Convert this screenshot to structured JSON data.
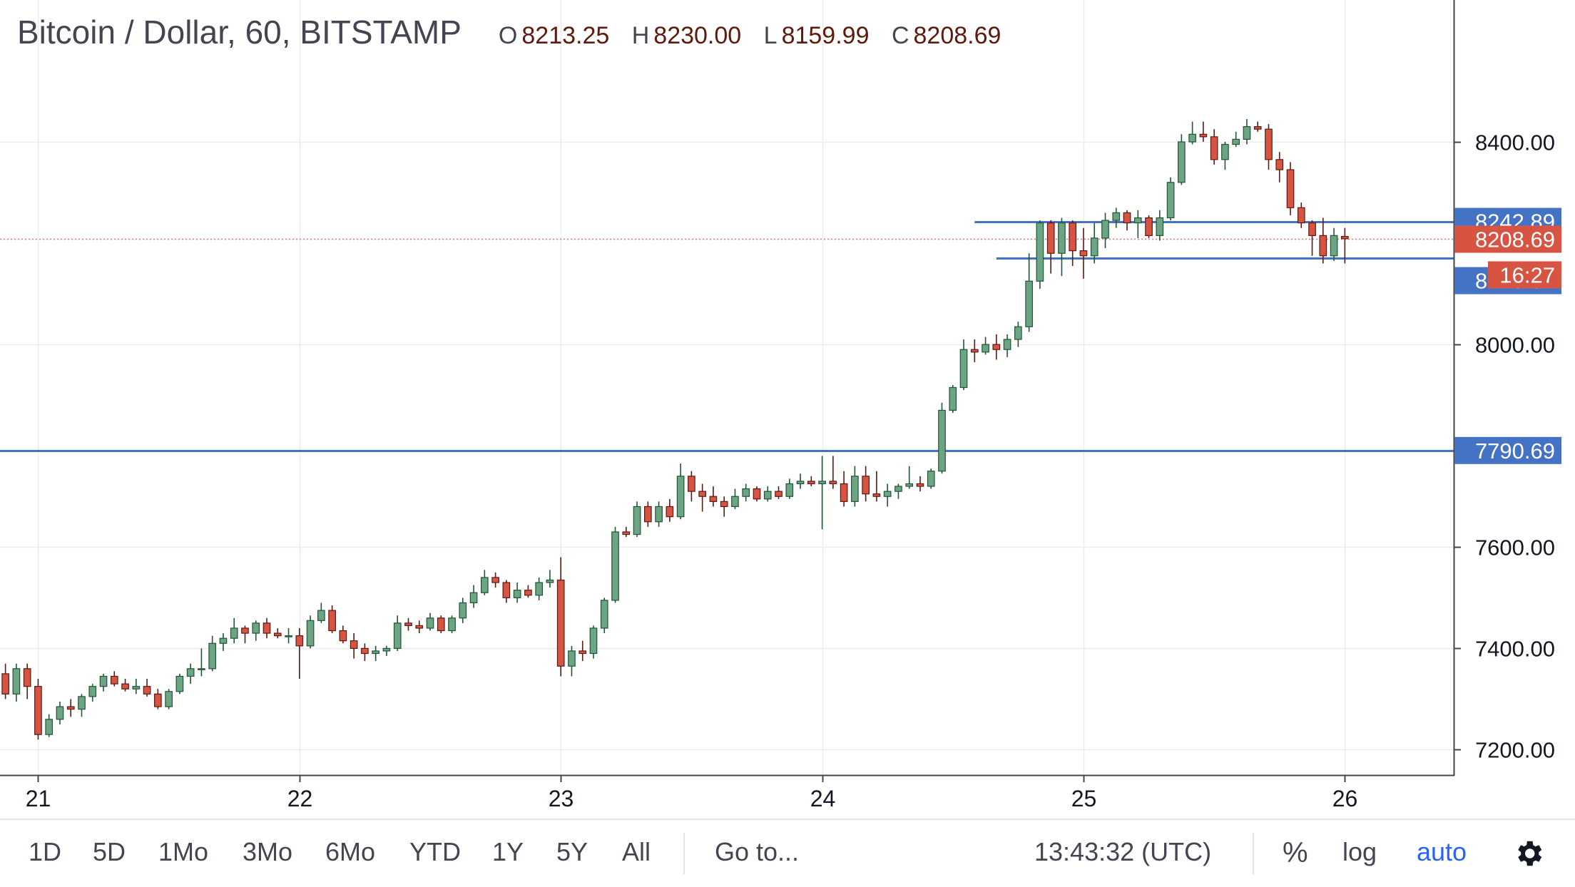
{
  "legend": {
    "symbol": "Bitcoin / Dollar, 60, BITSTAMP",
    "o_label": "O",
    "o_value": "8213.25",
    "h_label": "H",
    "h_value": "8230.00",
    "l_label": "L",
    "l_value": "8159.99",
    "c_label": "C",
    "c_value": "8208.69"
  },
  "chart_data": {
    "type": "candlestick",
    "x_ticks": [
      {
        "label": "21",
        "t": 0
      },
      {
        "label": "22",
        "t": 24
      },
      {
        "label": "23",
        "t": 48
      },
      {
        "label": "24",
        "t": 72
      },
      {
        "label": "25",
        "t": 96
      },
      {
        "label": "26",
        "t": 120
      }
    ],
    "y_ticks": [
      "7200.00",
      "7400.00",
      "7600.00",
      "8000.00",
      "8400.00"
    ],
    "ylim": [
      7150,
      8680
    ],
    "xlim": [
      -3.5,
      130
    ],
    "horizontal_lines": [
      {
        "value": 8242.89,
        "label": "8242.89",
        "from_t": 86
      },
      {
        "value": 8170.37,
        "from_t": 88
      },
      {
        "value": 7790.69,
        "label": "7790.69",
        "from_t": -4
      }
    ],
    "price_line": {
      "value": 8208.69,
      "label": "8208.69",
      "countdown": "16:27"
    },
    "extra_axis_label": {
      "value": 8170.37,
      "label": "8170.37",
      "y_display": 8126
    },
    "colors": {
      "up": "#6ba583",
      "down": "#d75442",
      "up_border": "#225437",
      "down_border": "#5b1a13",
      "level": "#4472c4",
      "price": "#d75442"
    },
    "candles": [
      [
        -3,
        7350,
        7370,
        7300,
        7310
      ],
      [
        -2,
        7310,
        7370,
        7295,
        7360
      ],
      [
        -1,
        7360,
        7370,
        7300,
        7325
      ],
      [
        0,
        7325,
        7340,
        7220,
        7230
      ],
      [
        1,
        7230,
        7270,
        7225,
        7260
      ],
      [
        2,
        7260,
        7295,
        7250,
        7285
      ],
      [
        3,
        7285,
        7300,
        7265,
        7280
      ],
      [
        4,
        7280,
        7310,
        7265,
        7305
      ],
      [
        5,
        7305,
        7330,
        7295,
        7325
      ],
      [
        6,
        7325,
        7350,
        7315,
        7345
      ],
      [
        7,
        7345,
        7355,
        7325,
        7330
      ],
      [
        8,
        7330,
        7340,
        7315,
        7320
      ],
      [
        9,
        7320,
        7340,
        7310,
        7325
      ],
      [
        10,
        7325,
        7340,
        7305,
        7310
      ],
      [
        11,
        7310,
        7320,
        7280,
        7285
      ],
      [
        12,
        7285,
        7320,
        7280,
        7315
      ],
      [
        13,
        7315,
        7350,
        7310,
        7345
      ],
      [
        14,
        7345,
        7370,
        7330,
        7360
      ],
      [
        15,
        7360,
        7400,
        7345,
        7360
      ],
      [
        16,
        7360,
        7425,
        7355,
        7410
      ],
      [
        17,
        7410,
        7430,
        7395,
        7420
      ],
      [
        18,
        7420,
        7460,
        7410,
        7440
      ],
      [
        19,
        7440,
        7445,
        7410,
        7430
      ],
      [
        20,
        7430,
        7455,
        7415,
        7450
      ],
      [
        21,
        7450,
        7460,
        7420,
        7430
      ],
      [
        22,
        7430,
        7440,
        7420,
        7425
      ],
      [
        23,
        7425,
        7440,
        7410,
        7425
      ],
      [
        24,
        7425,
        7440,
        7340,
        7405
      ],
      [
        25,
        7405,
        7465,
        7400,
        7455
      ],
      [
        26,
        7455,
        7490,
        7450,
        7475
      ],
      [
        27,
        7475,
        7485,
        7430,
        7435
      ],
      [
        28,
        7435,
        7445,
        7410,
        7415
      ],
      [
        29,
        7415,
        7430,
        7380,
        7400
      ],
      [
        30,
        7400,
        7410,
        7375,
        7390
      ],
      [
        31,
        7390,
        7405,
        7375,
        7395
      ],
      [
        32,
        7395,
        7405,
        7385,
        7400
      ],
      [
        33,
        7400,
        7465,
        7395,
        7450
      ],
      [
        34,
        7450,
        7460,
        7435,
        7445
      ],
      [
        35,
        7445,
        7455,
        7430,
        7440
      ],
      [
        36,
        7440,
        7470,
        7435,
        7460
      ],
      [
        37,
        7460,
        7465,
        7430,
        7435
      ],
      [
        38,
        7435,
        7465,
        7430,
        7460
      ],
      [
        39,
        7460,
        7500,
        7450,
        7490
      ],
      [
        40,
        7490,
        7525,
        7480,
        7510
      ],
      [
        41,
        7510,
        7555,
        7505,
        7540
      ],
      [
        42,
        7540,
        7550,
        7520,
        7530
      ],
      [
        43,
        7530,
        7535,
        7490,
        7500
      ],
      [
        44,
        7500,
        7530,
        7490,
        7515
      ],
      [
        45,
        7515,
        7525,
        7500,
        7505
      ],
      [
        46,
        7505,
        7540,
        7495,
        7530
      ],
      [
        47,
        7530,
        7555,
        7520,
        7535
      ],
      [
        48,
        7535,
        7580,
        7345,
        7365
      ],
      [
        49,
        7365,
        7405,
        7345,
        7395
      ],
      [
        50,
        7395,
        7415,
        7375,
        7390
      ],
      [
        51,
        7390,
        7445,
        7380,
        7440
      ],
      [
        52,
        7440,
        7500,
        7430,
        7495
      ],
      [
        53,
        7495,
        7640,
        7490,
        7630
      ],
      [
        54,
        7630,
        7640,
        7620,
        7625
      ],
      [
        55,
        7625,
        7690,
        7620,
        7680
      ],
      [
        56,
        7680,
        7690,
        7640,
        7650
      ],
      [
        57,
        7650,
        7690,
        7640,
        7680
      ],
      [
        58,
        7680,
        7695,
        7650,
        7660
      ],
      [
        59,
        7660,
        7765,
        7655,
        7740
      ],
      [
        60,
        7740,
        7750,
        7690,
        7710
      ],
      [
        61,
        7710,
        7725,
        7670,
        7700
      ],
      [
        62,
        7700,
        7720,
        7680,
        7690
      ],
      [
        63,
        7690,
        7700,
        7660,
        7680
      ],
      [
        64,
        7680,
        7715,
        7675,
        7700
      ],
      [
        65,
        7700,
        7725,
        7690,
        7715
      ],
      [
        66,
        7715,
        7720,
        7690,
        7695
      ],
      [
        67,
        7695,
        7720,
        7690,
        7710
      ],
      [
        68,
        7710,
        7720,
        7695,
        7700
      ],
      [
        69,
        7700,
        7735,
        7695,
        7725
      ],
      [
        70,
        7725,
        7745,
        7715,
        7730
      ],
      [
        71,
        7730,
        7740,
        7720,
        7725
      ],
      [
        72,
        7725,
        7780,
        7635,
        7730
      ],
      [
        73,
        7730,
        7780,
        7715,
        7725
      ],
      [
        74,
        7725,
        7750,
        7680,
        7690
      ],
      [
        75,
        7690,
        7760,
        7680,
        7740
      ],
      [
        76,
        7740,
        7760,
        7690,
        7705
      ],
      [
        77,
        7705,
        7750,
        7690,
        7700
      ],
      [
        78,
        7700,
        7725,
        7680,
        7710
      ],
      [
        79,
        7710,
        7725,
        7695,
        7720
      ],
      [
        80,
        7720,
        7760,
        7715,
        7725
      ],
      [
        81,
        7725,
        7740,
        7710,
        7720
      ],
      [
        82,
        7720,
        7755,
        7715,
        7750
      ],
      [
        83,
        7750,
        7885,
        7745,
        7870
      ],
      [
        84,
        7870,
        7920,
        7865,
        7915
      ],
      [
        85,
        7915,
        8010,
        7910,
        7990
      ],
      [
        86,
        7990,
        8010,
        7965,
        7985
      ],
      [
        87,
        7985,
        8015,
        7980,
        8000
      ],
      [
        88,
        8000,
        8020,
        7970,
        7990
      ],
      [
        89,
        7990,
        8020,
        7975,
        8010
      ],
      [
        90,
        8010,
        8045,
        7995,
        8035
      ],
      [
        91,
        8035,
        8180,
        8025,
        8125
      ],
      [
        92,
        8125,
        8245,
        8110,
        8240
      ],
      [
        93,
        8240,
        8245,
        8140,
        8180
      ],
      [
        94,
        8180,
        8250,
        8135,
        8240
      ],
      [
        95,
        8240,
        8245,
        8155,
        8185
      ],
      [
        96,
        8185,
        8230,
        8130,
        8175
      ],
      [
        97,
        8175,
        8240,
        8160,
        8210
      ],
      [
        98,
        8210,
        8260,
        8190,
        8245
      ],
      [
        99,
        8245,
        8270,
        8230,
        8260
      ],
      [
        100,
        8260,
        8265,
        8225,
        8240
      ],
      [
        101,
        8240,
        8265,
        8210,
        8250
      ],
      [
        102,
        8250,
        8255,
        8210,
        8215
      ],
      [
        103,
        8215,
        8265,
        8205,
        8250
      ],
      [
        104,
        8250,
        8330,
        8245,
        8320
      ],
      [
        105,
        8320,
        8415,
        8315,
        8400
      ],
      [
        106,
        8400,
        8440,
        8395,
        8415
      ],
      [
        107,
        8415,
        8440,
        8400,
        8410
      ],
      [
        108,
        8410,
        8425,
        8355,
        8365
      ],
      [
        109,
        8365,
        8400,
        8345,
        8395
      ],
      [
        110,
        8395,
        8420,
        8390,
        8405
      ],
      [
        111,
        8405,
        8445,
        8395,
        8430
      ],
      [
        112,
        8430,
        8440,
        8420,
        8425
      ],
      [
        113,
        8425,
        8435,
        8345,
        8365
      ],
      [
        114,
        8365,
        8380,
        8320,
        8345
      ],
      [
        115,
        8345,
        8360,
        8255,
        8270
      ],
      [
        116,
        8270,
        8280,
        8230,
        8240
      ],
      [
        117,
        8240,
        8245,
        8175,
        8215
      ],
      [
        118,
        8215,
        8250,
        8160,
        8175
      ],
      [
        119,
        8175,
        8230,
        8165,
        8215
      ],
      [
        120,
        8213.25,
        8230,
        8159.99,
        8208.69
      ]
    ]
  },
  "toolbar": {
    "ranges": [
      "1D",
      "5D",
      "1Mo",
      "3Mo",
      "6Mo",
      "YTD",
      "1Y",
      "5Y",
      "All"
    ],
    "goto": "Go to...",
    "time": "13:43:32 (UTC)",
    "percent": "%",
    "log": "log",
    "auto": "auto",
    "settings_icon": "gear-icon"
  }
}
